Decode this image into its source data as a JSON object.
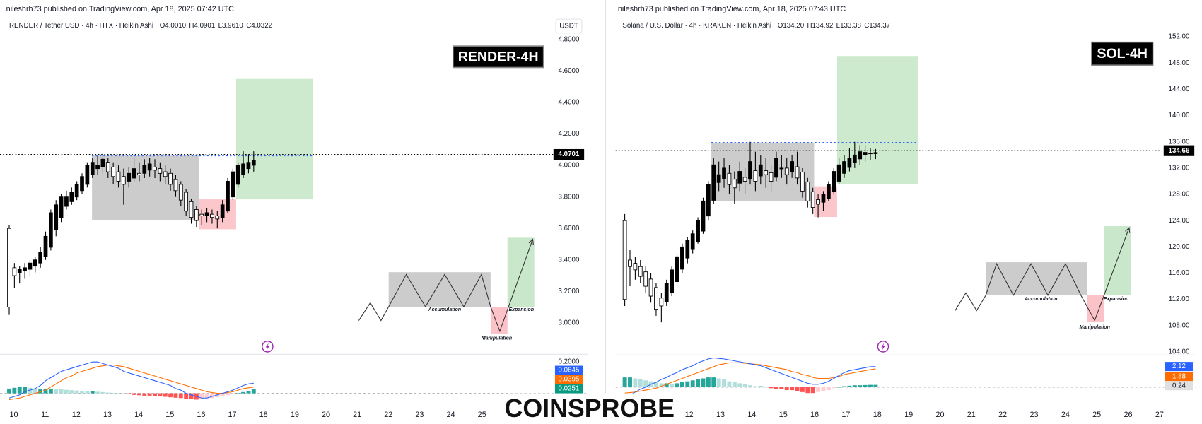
{
  "watermark": "COINSPROBE",
  "panels": [
    {
      "publisher": "nileshrh73 published on TradingView.com, Apr 18, 2025 07:42 UTC",
      "symbol": "RENDER / Tether USD · 4h · HTX · Heikin Ashi",
      "ohlc": [
        "O4.0010",
        "H4.0901",
        "L3.9610",
        "C4.0322"
      ],
      "tag": "RENDER-4H",
      "currency": "USDT",
      "ylim": [
        2.81,
        4.93
      ],
      "yticks": [
        {
          "value": 4.8,
          "label": "4.8000"
        },
        {
          "value": 4.6,
          "label": "4.6000"
        },
        {
          "value": 4.4,
          "label": "4.4000"
        },
        {
          "value": 4.2,
          "label": "4.2000"
        },
        {
          "value": 4.0,
          "label": "4.0000"
        },
        {
          "value": 3.8,
          "label": "3.8000"
        },
        {
          "value": 3.6,
          "label": "3.6000"
        },
        {
          "value": 3.4,
          "label": "3.4000"
        },
        {
          "value": 3.2,
          "label": "3.2000"
        },
        {
          "value": 3.0,
          "label": "3.0000"
        }
      ],
      "last_price": {
        "value": 4.0701,
        "label": "4.0701"
      },
      "xlim": [
        9.557,
        27.29
      ],
      "days": [
        10,
        11,
        12,
        13,
        14,
        15,
        16,
        17,
        18,
        19,
        20,
        21,
        22,
        23,
        24,
        25
      ],
      "candles": [
        [
          3.6,
          3.62,
          3.05,
          3.1
        ],
        [
          3.35,
          3.38,
          3.22,
          3.3
        ],
        [
          3.32,
          3.36,
          3.25,
          3.34
        ],
        [
          3.33,
          3.38,
          3.28,
          3.35
        ],
        [
          3.34,
          3.4,
          3.3,
          3.38
        ],
        [
          3.36,
          3.42,
          3.32,
          3.4
        ],
        [
          3.38,
          3.48,
          3.35,
          3.45
        ],
        [
          3.42,
          3.58,
          3.4,
          3.55
        ],
        [
          3.48,
          3.72,
          3.46,
          3.7
        ],
        [
          3.59,
          3.78,
          3.55,
          3.75
        ],
        [
          3.67,
          3.82,
          3.64,
          3.8
        ],
        [
          3.74,
          3.84,
          3.72,
          3.8
        ],
        [
          3.77,
          3.86,
          3.75,
          3.83
        ],
        [
          3.8,
          3.9,
          3.78,
          3.88
        ],
        [
          3.84,
          3.95,
          3.82,
          3.93
        ],
        [
          3.88,
          4.02,
          3.86,
          4.0
        ],
        [
          3.94,
          4.05,
          3.92,
          4.02
        ],
        [
          3.98,
          4.06,
          3.94,
          4.0
        ],
        [
          3.99,
          4.08,
          3.95,
          4.04
        ],
        [
          4.02,
          4.05,
          3.92,
          3.96
        ],
        [
          3.99,
          4.02,
          3.88,
          3.93
        ],
        [
          3.96,
          4.0,
          3.86,
          3.9
        ],
        [
          3.93,
          3.98,
          3.75,
          3.88
        ],
        [
          3.9,
          3.99,
          3.86,
          3.95
        ],
        [
          3.92,
          4.05,
          3.9,
          3.98
        ],
        [
          3.95,
          4.02,
          3.9,
          3.94
        ],
        [
          3.95,
          4.04,
          3.92,
          4.0
        ],
        [
          3.97,
          4.05,
          3.93,
          4.01
        ],
        [
          3.99,
          4.04,
          3.92,
          3.97
        ],
        [
          3.98,
          4.02,
          3.9,
          3.95
        ],
        [
          3.96,
          4.0,
          3.88,
          3.93
        ],
        [
          3.95,
          3.98,
          3.84,
          3.88
        ],
        [
          3.91,
          3.94,
          3.8,
          3.84
        ],
        [
          3.88,
          3.9,
          3.74,
          3.78
        ],
        [
          3.83,
          3.85,
          3.68,
          3.71
        ],
        [
          3.77,
          3.79,
          3.63,
          3.67
        ],
        [
          3.72,
          3.74,
          3.61,
          3.65
        ],
        [
          3.69,
          3.72,
          3.62,
          3.68
        ],
        [
          3.68,
          3.73,
          3.64,
          3.7
        ],
        [
          3.69,
          3.72,
          3.63,
          3.67
        ],
        [
          3.68,
          3.71,
          3.6,
          3.66
        ],
        [
          3.67,
          3.78,
          3.64,
          3.75
        ],
        [
          3.71,
          3.92,
          3.7,
          3.9
        ],
        [
          3.8,
          3.98,
          3.78,
          3.96
        ],
        [
          3.88,
          4.02,
          3.86,
          4.0
        ],
        [
          3.94,
          4.09,
          3.92,
          4.01
        ],
        [
          3.98,
          4.07,
          3.95,
          4.02
        ],
        [
          4.001,
          4.0901,
          3.961,
          4.0322
        ]
      ],
      "macd": {
        "ylim": [
          -0.044,
          0.249
        ],
        "ticks": [
          {
            "value": 0.2,
            "label": "0.2000"
          }
        ],
        "histogram": {
          "color": "#089981",
          "values": [
            0.03,
            0.035,
            0.04,
            0.04,
            0.035,
            0.03,
            0.03,
            0.03,
            0.03,
            0.028,
            0.025,
            0.022,
            0.02,
            0.018,
            0.015,
            0.012,
            0.012,
            0.01,
            0.008,
            0.005,
            0.003,
            0.002,
            0,
            -0.005,
            -0.01,
            -0.012,
            -0.015,
            -0.015,
            -0.018,
            -0.02,
            -0.022,
            -0.025,
            -0.028,
            -0.03,
            -0.035,
            -0.038,
            -0.04,
            -0.038,
            -0.035,
            -0.03,
            -0.025,
            -0.02,
            -0.012,
            -0.005,
            0.002,
            0.008,
            0.012,
            0.0251
          ],
          "last_label": "0.0251"
        },
        "macd": {
          "color": "#2962ff",
          "values": [
            -0.03,
            -0.02,
            -0.01,
            0.01,
            0.02,
            0.03,
            0.05,
            0.08,
            0.1,
            0.12,
            0.14,
            0.15,
            0.16,
            0.17,
            0.18,
            0.19,
            0.2,
            0.2,
            0.19,
            0.18,
            0.17,
            0.16,
            0.14,
            0.13,
            0.12,
            0.11,
            0.1,
            0.09,
            0.08,
            0.07,
            0.06,
            0.05,
            0.03,
            0.02,
            0.0,
            -0.01,
            -0.02,
            -0.03,
            -0.03,
            -0.02,
            -0.01,
            0.0,
            0.01,
            0.02,
            0.035,
            0.05,
            0.06,
            0.0645
          ],
          "last_label": "0.0645"
        },
        "signal": {
          "color": "#ff6d00",
          "values": [
            -0.04,
            -0.035,
            -0.03,
            -0.02,
            -0.01,
            0.0,
            0.01,
            0.02,
            0.04,
            0.06,
            0.08,
            0.1,
            0.11,
            0.13,
            0.14,
            0.15,
            0.16,
            0.17,
            0.175,
            0.18,
            0.18,
            0.175,
            0.17,
            0.16,
            0.15,
            0.14,
            0.13,
            0.12,
            0.11,
            0.1,
            0.09,
            0.08,
            0.07,
            0.06,
            0.05,
            0.04,
            0.03,
            0.02,
            0.01,
            0.005,
            0.0,
            0.0,
            0.005,
            0.01,
            0.02,
            0.03,
            0.035,
            0.0395
          ],
          "last_label": "0.0395"
        }
      },
      "diagram": {
        "accumulation": "Accumulation",
        "manipulation": "Manipulation",
        "expansion": "Expansion"
      }
    },
    {
      "publisher": "nileshrh73 published on TradingView.com, Apr 18, 2025 07:43 UTC",
      "symbol": "Solana / U.S. Dollar · 4h · KRAKEN · Heikin Ashi",
      "ohlc": [
        "O134.20",
        "H134.92",
        "L133.38",
        "C134.37"
      ],
      "tag": "SOL-4H",
      "ylim": [
        103.88,
        154.69
      ],
      "yticks": [
        {
          "value": 152,
          "label": "152.00"
        },
        {
          "value": 148,
          "label": "148.00"
        },
        {
          "value": 144,
          "label": "144.00"
        },
        {
          "value": 140,
          "label": "140.00"
        },
        {
          "value": 136,
          "label": "136.00"
        },
        {
          "value": 132,
          "label": "132.00"
        },
        {
          "value": 128,
          "label": "128.00"
        },
        {
          "value": 124,
          "label": "124.00"
        },
        {
          "value": 120,
          "label": "120.00"
        },
        {
          "value": 116,
          "label": "116.00"
        },
        {
          "value": 112,
          "label": "112.00"
        },
        {
          "value": 108,
          "label": "108.00"
        },
        {
          "value": 104,
          "label": "104.00"
        }
      ],
      "last_price": {
        "value": 134.66,
        "label": "134.66"
      },
      "xlim": [
        9.653,
        27.06
      ],
      "days": [
        12,
        13,
        14,
        15,
        16,
        17,
        18,
        19,
        20,
        21,
        22,
        23,
        24,
        25,
        26,
        27
      ],
      "candles": [
        [
          124.0,
          125.0,
          111.0,
          112.0
        ],
        [
          118.0,
          119.5,
          114.0,
          117.0
        ],
        [
          117.5,
          118.5,
          115.0,
          116.5
        ],
        [
          117.0,
          118.0,
          114.5,
          115.5
        ],
        [
          116.2,
          117.0,
          113.0,
          114.0
        ],
        [
          115.1,
          116.0,
          111.5,
          112.5
        ],
        [
          113.8,
          114.5,
          109.5,
          110.5
        ],
        [
          112.2,
          113.0,
          108.5,
          111.0
        ],
        [
          111.6,
          115.0,
          111.0,
          114.5
        ],
        [
          113.0,
          117.0,
          112.5,
          116.5
        ],
        [
          114.7,
          119.0,
          114.0,
          118.5
        ],
        [
          116.6,
          120.5,
          116.0,
          120.0
        ],
        [
          118.3,
          121.5,
          117.5,
          121.0
        ],
        [
          119.6,
          122.5,
          119.0,
          122.0
        ],
        [
          120.8,
          124.5,
          120.5,
          124.0
        ],
        [
          122.4,
          127.5,
          122.0,
          127.0
        ],
        [
          124.7,
          130.0,
          124.0,
          129.5
        ],
        [
          127.1,
          133.5,
          126.5,
          132.5
        ],
        [
          129.8,
          133.0,
          128.5,
          131.0
        ],
        [
          130.4,
          133.5,
          129.0,
          132.0
        ],
        [
          131.2,
          132.5,
          128.0,
          129.5
        ],
        [
          130.3,
          131.5,
          126.5,
          129.0
        ],
        [
          129.7,
          133.0,
          128.5,
          131.5
        ],
        [
          130.6,
          132.0,
          128.0,
          130.0
        ],
        [
          130.3,
          136.0,
          129.5,
          133.0
        ],
        [
          131.6,
          134.5,
          128.5,
          130.0
        ],
        [
          130.8,
          134.0,
          129.5,
          132.5
        ],
        [
          131.6,
          133.5,
          129.0,
          131.0
        ],
        [
          131.3,
          132.5,
          128.5,
          130.0
        ],
        [
          130.6,
          134.5,
          130.0,
          133.5
        ],
        [
          132.0,
          134.0,
          130.5,
          132.0
        ],
        [
          132.0,
          133.5,
          129.5,
          131.0
        ],
        [
          131.5,
          134.0,
          130.5,
          133.0
        ],
        [
          132.2,
          134.5,
          129.5,
          130.5
        ],
        [
          131.4,
          132.0,
          127.5,
          128.5
        ],
        [
          129.9,
          130.5,
          126.0,
          127.0
        ],
        [
          128.4,
          129.0,
          125.0,
          126.0
        ],
        [
          127.2,
          128.0,
          124.5,
          126.5
        ],
        [
          126.8,
          128.5,
          125.5,
          128.0
        ],
        [
          127.4,
          130.0,
          127.0,
          129.5
        ],
        [
          128.4,
          132.0,
          128.0,
          131.5
        ],
        [
          130.0,
          133.5,
          129.5,
          132.5
        ],
        [
          131.2,
          134.0,
          130.5,
          133.0
        ],
        [
          132.1,
          135.0,
          131.5,
          133.5
        ],
        [
          132.8,
          136.0,
          132.0,
          134.0
        ],
        [
          133.4,
          135.5,
          132.5,
          134.5
        ],
        [
          134.0,
          135.5,
          133.0,
          134.4
        ],
        [
          134.2,
          135.0,
          133.2,
          134.3
        ],
        [
          134.2,
          134.92,
          133.38,
          134.37
        ]
      ],
      "macd": {
        "ylim": [
          -0.785,
          3.3
        ],
        "ticks": [],
        "histogram": {
          "color": "#e0e0e0",
          "values": [
            1.0,
            1.0,
            0.9,
            0.8,
            0.7,
            0.6,
            0.5,
            0.4,
            0.4,
            0.3,
            0.4,
            0.5,
            0.6,
            0.7,
            0.8,
            0.9,
            1.0,
            1.0,
            0.9,
            0.8,
            0.6,
            0.5,
            0.4,
            0.3,
            0.2,
            0.1,
            0.1,
            0.0,
            -0.1,
            -0.2,
            -0.2,
            -0.3,
            -0.3,
            -0.4,
            -0.5,
            -0.6,
            -0.6,
            -0.5,
            -0.4,
            -0.3,
            -0.1,
            0.0,
            0.1,
            0.15,
            0.2,
            0.2,
            0.22,
            0.24,
            0.24
          ],
          "last_label": "0.24"
        },
        "macd": {
          "color": "#2962ff",
          "values": [
            -1,
            -0.8,
            -0.5,
            -0.2,
            0,
            0.3,
            0.5,
            0.8,
            1.0,
            1.3,
            1.5,
            1.8,
            2.0,
            2.2,
            2.5,
            2.7,
            2.9,
            3.0,
            2.95,
            2.9,
            2.8,
            2.7,
            2.6,
            2.5,
            2.4,
            2.3,
            2.2,
            2.0,
            1.8,
            1.6,
            1.4,
            1.2,
            1.0,
            0.8,
            0.6,
            0.4,
            0.3,
            0.3,
            0.4,
            0.6,
            0.9,
            1.2,
            1.5,
            1.7,
            1.8,
            1.9,
            2.0,
            2.1,
            2.12
          ],
          "last_label": "2.12"
        },
        "signal": {
          "color": "#ff6d00",
          "values": [
            -0.6,
            -0.55,
            -0.5,
            -0.4,
            -0.3,
            -0.2,
            -0.1,
            0.1,
            0.3,
            0.5,
            0.7,
            0.9,
            1.1,
            1.3,
            1.5,
            1.7,
            1.9,
            2.1,
            2.3,
            2.4,
            2.5,
            2.5,
            2.5,
            2.45,
            2.4,
            2.35,
            2.3,
            2.2,
            2.1,
            2.0,
            1.9,
            1.8,
            1.6,
            1.5,
            1.3,
            1.2,
            1.0,
            0.9,
            0.9,
            0.9,
            1.0,
            1.1,
            1.3,
            1.4,
            1.5,
            1.6,
            1.7,
            1.8,
            1.88
          ],
          "last_label": "1.88"
        }
      },
      "diagram": {
        "accumulation": "Accumulation",
        "manipulation": "Manipulation",
        "expansion": "Expansion"
      }
    }
  ]
}
